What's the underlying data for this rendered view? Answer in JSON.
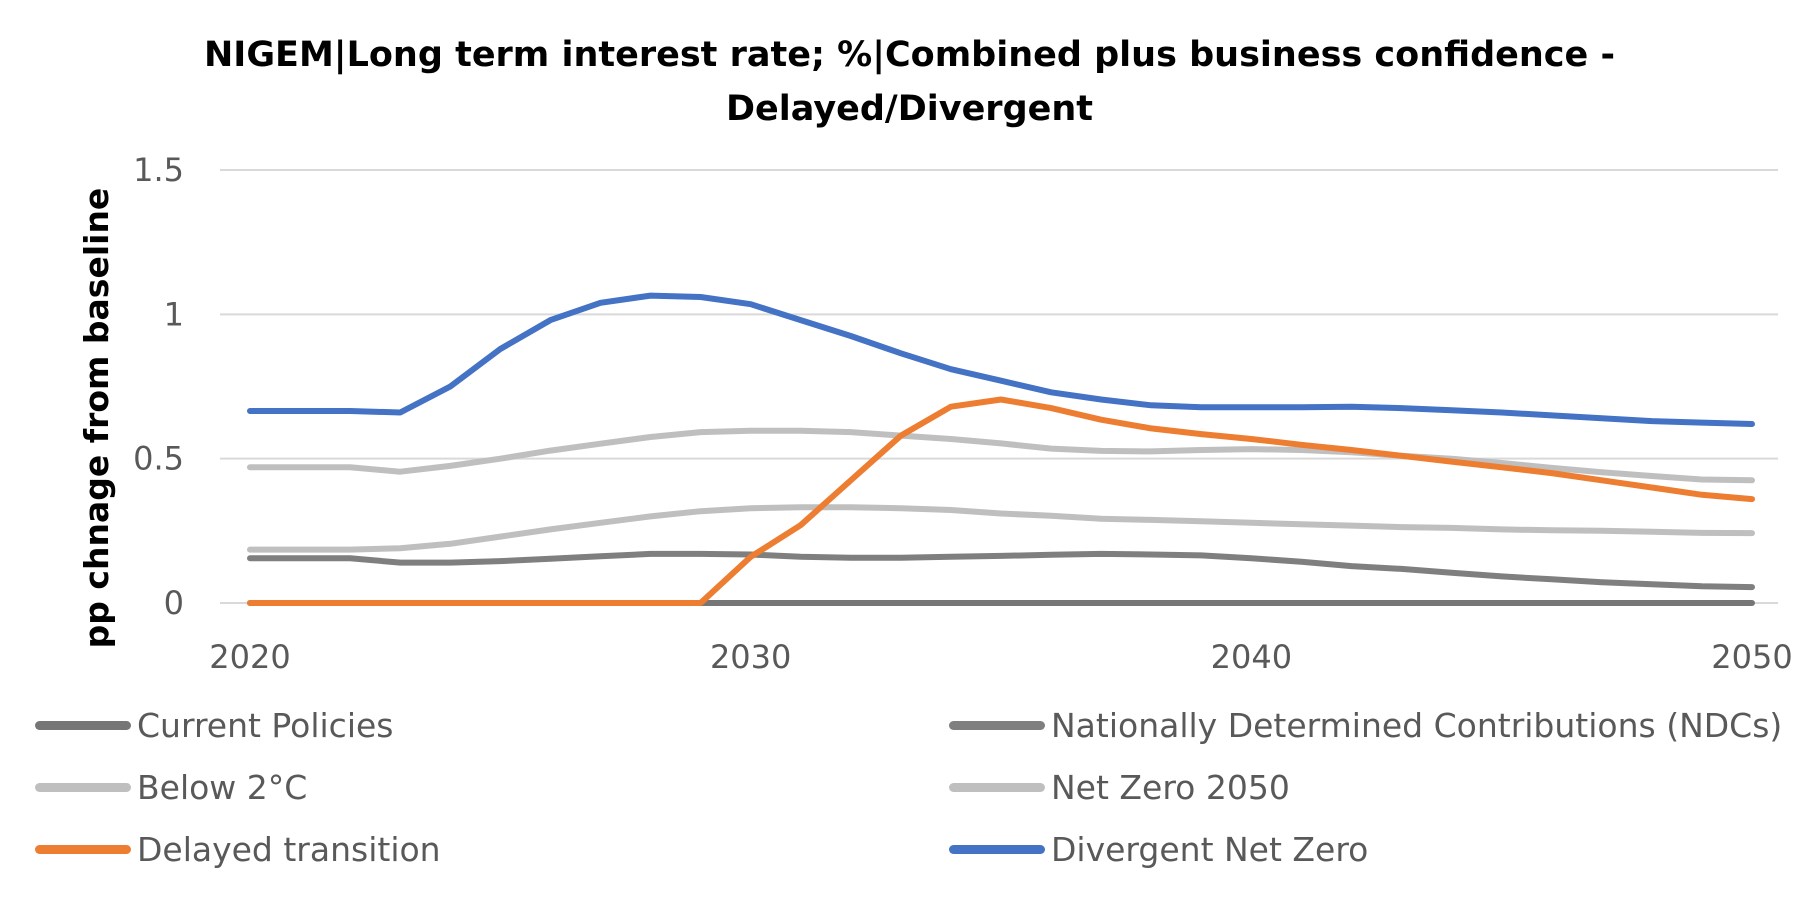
{
  "chart_data": {
    "type": "line",
    "title_lines": [
      "NIGEM|Long term interest rate; %|Combined plus business confidence -",
      "Delayed/Divergent"
    ],
    "ylabel": "pp chnage from baseline",
    "xlabel": "",
    "xlim": [
      2020,
      2050
    ],
    "ylim": [
      0,
      1.5
    ],
    "x_ticks": [
      2020,
      2030,
      2040,
      2050
    ],
    "y_ticks": [
      {
        "value": 0,
        "label": "0"
      },
      {
        "value": 0.5,
        "label": "0.5"
      },
      {
        "value": 1,
        "label": "1"
      },
      {
        "value": 1.5,
        "label": "1.5"
      }
    ],
    "grid": true,
    "legend_position": "bottom",
    "x": [
      2020,
      2021,
      2022,
      2023,
      2024,
      2025,
      2026,
      2027,
      2028,
      2029,
      2030,
      2031,
      2032,
      2033,
      2034,
      2035,
      2036,
      2037,
      2038,
      2039,
      2040,
      2041,
      2042,
      2043,
      2044,
      2045,
      2046,
      2047,
      2048,
      2049,
      2050
    ],
    "series": [
      {
        "name": "Current Policies",
        "color": "#767676",
        "values": [
          0,
          0,
          0,
          0,
          0,
          0,
          0,
          0,
          0,
          0,
          0,
          0,
          0,
          0,
          0,
          0,
          0,
          0,
          0,
          0,
          0,
          0,
          0,
          0,
          0,
          0,
          0,
          0,
          0,
          0,
          0
        ]
      },
      {
        "name": "Nationally Determined Contributions (NDCs)",
        "color": "#7f7f7f",
        "values": [
          0.155,
          0.155,
          0.155,
          0.14,
          0.14,
          0.145,
          0.153,
          0.162,
          0.17,
          0.17,
          0.168,
          0.16,
          0.157,
          0.157,
          0.16,
          0.163,
          0.167,
          0.17,
          0.168,
          0.165,
          0.155,
          0.143,
          0.128,
          0.118,
          0.105,
          0.092,
          0.082,
          0.072,
          0.065,
          0.058,
          0.055
        ]
      },
      {
        "name": "Below 2°C",
        "color": "#bfbfbf",
        "values": [
          0.47,
          0.47,
          0.47,
          0.455,
          0.475,
          0.5,
          0.528,
          0.552,
          0.575,
          0.592,
          0.597,
          0.597,
          0.592,
          0.58,
          0.568,
          0.553,
          0.535,
          0.527,
          0.525,
          0.53,
          0.533,
          0.53,
          0.522,
          0.51,
          0.5,
          0.485,
          0.468,
          0.453,
          0.44,
          0.428,
          0.425
        ]
      },
      {
        "name": "Net Zero 2050",
        "color": "#bfbfbf",
        "values": [
          0.185,
          0.185,
          0.185,
          0.19,
          0.205,
          0.23,
          0.255,
          0.278,
          0.3,
          0.318,
          0.328,
          0.332,
          0.332,
          0.328,
          0.322,
          0.31,
          0.302,
          0.292,
          0.288,
          0.283,
          0.278,
          0.273,
          0.268,
          0.263,
          0.26,
          0.255,
          0.252,
          0.25,
          0.247,
          0.243,
          0.242
        ]
      },
      {
        "name": "Delayed transition",
        "color": "#ed7d31",
        "values": [
          0,
          0,
          0,
          0,
          0,
          0,
          0,
          0,
          0,
          0,
          0.16,
          0.27,
          0.425,
          0.58,
          0.68,
          0.705,
          0.675,
          0.635,
          0.605,
          0.585,
          0.568,
          0.548,
          0.53,
          0.51,
          0.49,
          0.47,
          0.45,
          0.425,
          0.4,
          0.375,
          0.36
        ]
      },
      {
        "name": "Divergent Net Zero",
        "color": "#4472c4",
        "values": [
          0.665,
          0.665,
          0.665,
          0.66,
          0.75,
          0.88,
          0.98,
          1.04,
          1.065,
          1.06,
          1.035,
          0.98,
          0.925,
          0.865,
          0.81,
          0.77,
          0.73,
          0.705,
          0.685,
          0.678,
          0.678,
          0.678,
          0.68,
          0.675,
          0.668,
          0.66,
          0.65,
          0.64,
          0.63,
          0.625,
          0.62
        ]
      }
    ]
  }
}
